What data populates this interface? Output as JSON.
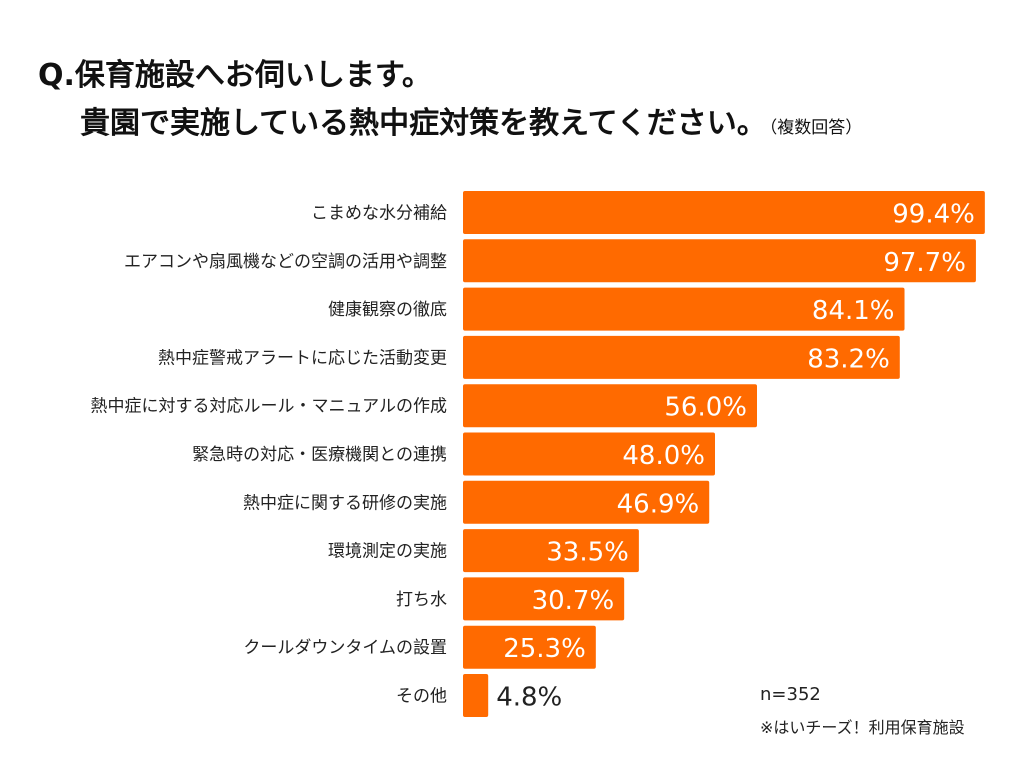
{
  "title": {
    "line1": "Q.保育施設へお伺いします。",
    "line2": "貴園で実施している熱中症対策を教えてください。",
    "note": "（複数回答）"
  },
  "footnote": {
    "sample": "n=352",
    "source": "※はいチーズ！利用保育施設"
  },
  "colors": {
    "bar": "#ff6a00"
  },
  "chart_data": {
    "type": "bar",
    "orientation": "horizontal",
    "categories": [
      "こまめな水分補給",
      "エアコンや扇風機などの空調の活用や調整",
      "健康観察の徹底",
      "熱中症警戒アラートに応じた活動変更",
      "熱中症に対する対応ルール・マニュアルの作成",
      "緊急時の対応・医療機関との連携",
      "熱中症に関する研修の実施",
      "環境測定の実施",
      "打ち水",
      "クールダウンタイムの設置",
      "その他"
    ],
    "values": [
      99.4,
      97.7,
      84.1,
      83.2,
      56.0,
      48.0,
      46.9,
      33.5,
      30.7,
      25.3,
      4.8
    ],
    "value_labels": [
      "99.4%",
      "97.7%",
      "84.1%",
      "83.2%",
      "56.0%",
      "48.0%",
      "46.9%",
      "33.5%",
      "30.7%",
      "25.3%",
      "4.8%"
    ],
    "xlim": [
      0,
      100
    ],
    "grid": false,
    "legend": "none"
  }
}
